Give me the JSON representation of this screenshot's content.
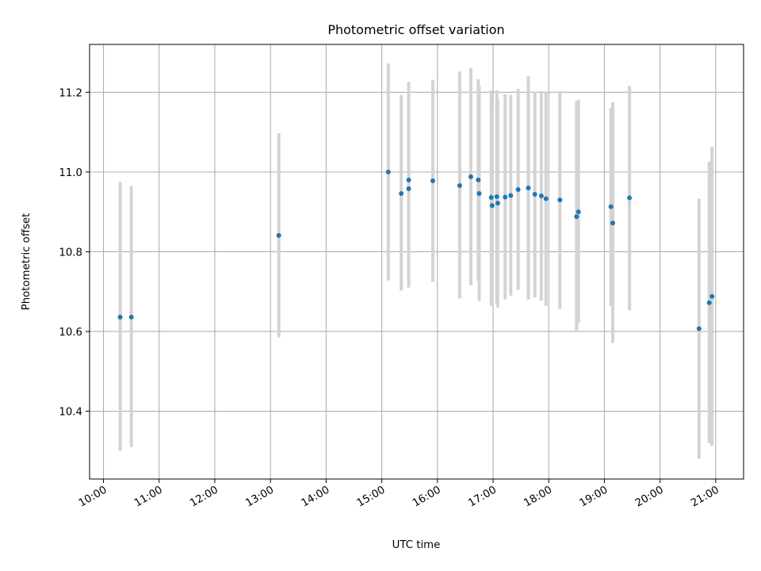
{
  "chart_data": {
    "type": "scatter",
    "title": "Photometric offset variation",
    "xlabel": "UTC time",
    "ylabel": "Photometric offset",
    "x_ticks": [
      "10:00",
      "11:00",
      "12:00",
      "13:00",
      "14:00",
      "15:00",
      "16:00",
      "17:00",
      "18:00",
      "19:00",
      "20:00",
      "21:00"
    ],
    "y_ticks": [
      "10.4",
      "10.6",
      "10.8",
      "11.0",
      "11.2"
    ],
    "xlim": [
      "09:45",
      "21:30"
    ],
    "ylim": [
      10.23,
      11.32
    ],
    "grid": true,
    "colors": {
      "point": "#1f77b4",
      "errorbar": "#d3d3d3",
      "grid": "#b0b0b0"
    },
    "points": [
      {
        "x": "10:18",
        "y": 10.636,
        "ylow": 10.3,
        "yhigh": 10.975
      },
      {
        "x": "10:30",
        "y": 10.636,
        "ylow": 10.31,
        "yhigh": 10.965
      },
      {
        "x": "13:09",
        "y": 10.841,
        "ylow": 10.585,
        "yhigh": 11.097
      },
      {
        "x": "15:07",
        "y": 11.0,
        "ylow": 10.728,
        "yhigh": 11.272
      },
      {
        "x": "15:21",
        "y": 10.946,
        "ylow": 10.703,
        "yhigh": 11.193
      },
      {
        "x": "15:29",
        "y": 10.98,
        "ylow": 10.734,
        "yhigh": 11.226
      },
      {
        "x": "15:29",
        "y": 10.958,
        "ylow": 10.71,
        "yhigh": 11.205
      },
      {
        "x": "15:55",
        "y": 10.978,
        "ylow": 10.724,
        "yhigh": 11.231
      },
      {
        "x": "16:24",
        "y": 10.966,
        "ylow": 10.683,
        "yhigh": 11.252
      },
      {
        "x": "16:36",
        "y": 10.988,
        "ylow": 10.716,
        "yhigh": 11.261
      },
      {
        "x": "16:44",
        "y": 10.98,
        "ylow": 10.727,
        "yhigh": 11.233
      },
      {
        "x": "16:45",
        "y": 10.946,
        "ylow": 10.676,
        "yhigh": 11.216
      },
      {
        "x": "16:58",
        "y": 10.936,
        "ylow": 10.665,
        "yhigh": 11.205
      },
      {
        "x": "16:59",
        "y": 10.916,
        "ylow": 10.664,
        "yhigh": 11.168
      },
      {
        "x": "17:04",
        "y": 10.938,
        "ylow": 10.671,
        "yhigh": 11.205
      },
      {
        "x": "17:05",
        "y": 10.922,
        "ylow": 10.66,
        "yhigh": 11.184
      },
      {
        "x": "17:13",
        "y": 10.937,
        "ylow": 10.68,
        "yhigh": 11.195
      },
      {
        "x": "17:19",
        "y": 10.941,
        "ylow": 10.69,
        "yhigh": 11.193
      },
      {
        "x": "17:27",
        "y": 10.956,
        "ylow": 10.705,
        "yhigh": 11.208
      },
      {
        "x": "17:38",
        "y": 10.96,
        "ylow": 10.68,
        "yhigh": 11.24
      },
      {
        "x": "17:45",
        "y": 10.944,
        "ylow": 10.686,
        "yhigh": 11.202
      },
      {
        "x": "17:52",
        "y": 10.94,
        "ylow": 10.677,
        "yhigh": 11.203
      },
      {
        "x": "17:57",
        "y": 10.933,
        "ylow": 10.664,
        "yhigh": 11.202
      },
      {
        "x": "18:12",
        "y": 10.93,
        "ylow": 10.657,
        "yhigh": 11.203
      },
      {
        "x": "18:30",
        "y": 10.888,
        "ylow": 10.6,
        "yhigh": 11.178
      },
      {
        "x": "18:32",
        "y": 10.9,
        "ylow": 10.621,
        "yhigh": 11.181
      },
      {
        "x": "19:07",
        "y": 10.913,
        "ylow": 10.664,
        "yhigh": 11.161
      },
      {
        "x": "19:09",
        "y": 10.872,
        "ylow": 10.571,
        "yhigh": 11.175
      },
      {
        "x": "19:27",
        "y": 10.935,
        "ylow": 10.653,
        "yhigh": 11.216
      },
      {
        "x": "20:42",
        "y": 10.607,
        "ylow": 10.281,
        "yhigh": 10.933
      },
      {
        "x": "20:53",
        "y": 10.672,
        "ylow": 10.32,
        "yhigh": 11.026
      },
      {
        "x": "20:56",
        "y": 10.688,
        "ylow": 10.313,
        "yhigh": 11.063
      }
    ]
  }
}
